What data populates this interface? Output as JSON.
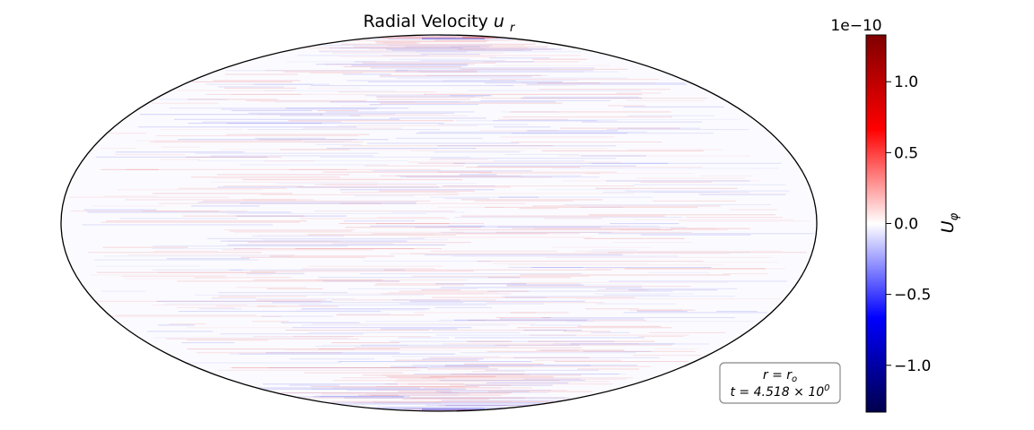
{
  "chart_data": {
    "type": "heatmap",
    "projection": "mollweide",
    "title": "Radial Velocity",
    "title_symbol": "u",
    "title_subscript": "r",
    "colormap": "seismic",
    "colormap_stops": [
      "#00004c",
      "#0000ff",
      "#ffffff",
      "#ff0000",
      "#7f0000"
    ],
    "field_description": "near-zero noise with faint red and blue horizontal streaks",
    "colorbar": {
      "label_symbol": "U",
      "label_subscript": "φ",
      "scale_factor": "1e−10",
      "vmin": -1.33,
      "vmax": 1.33,
      "ticks": [
        {
          "value": 1.0,
          "label": "1.0"
        },
        {
          "value": 0.5,
          "label": "0.5"
        },
        {
          "value": 0.0,
          "label": "0.0"
        },
        {
          "value": -0.5,
          "label": "−0.5"
        },
        {
          "value": -1.0,
          "label": "−1.0"
        }
      ]
    },
    "annotation": {
      "line1": "r = r",
      "line1_sub": "o",
      "line2": "t = 4.518 × 10",
      "line2_sup": "0"
    }
  }
}
